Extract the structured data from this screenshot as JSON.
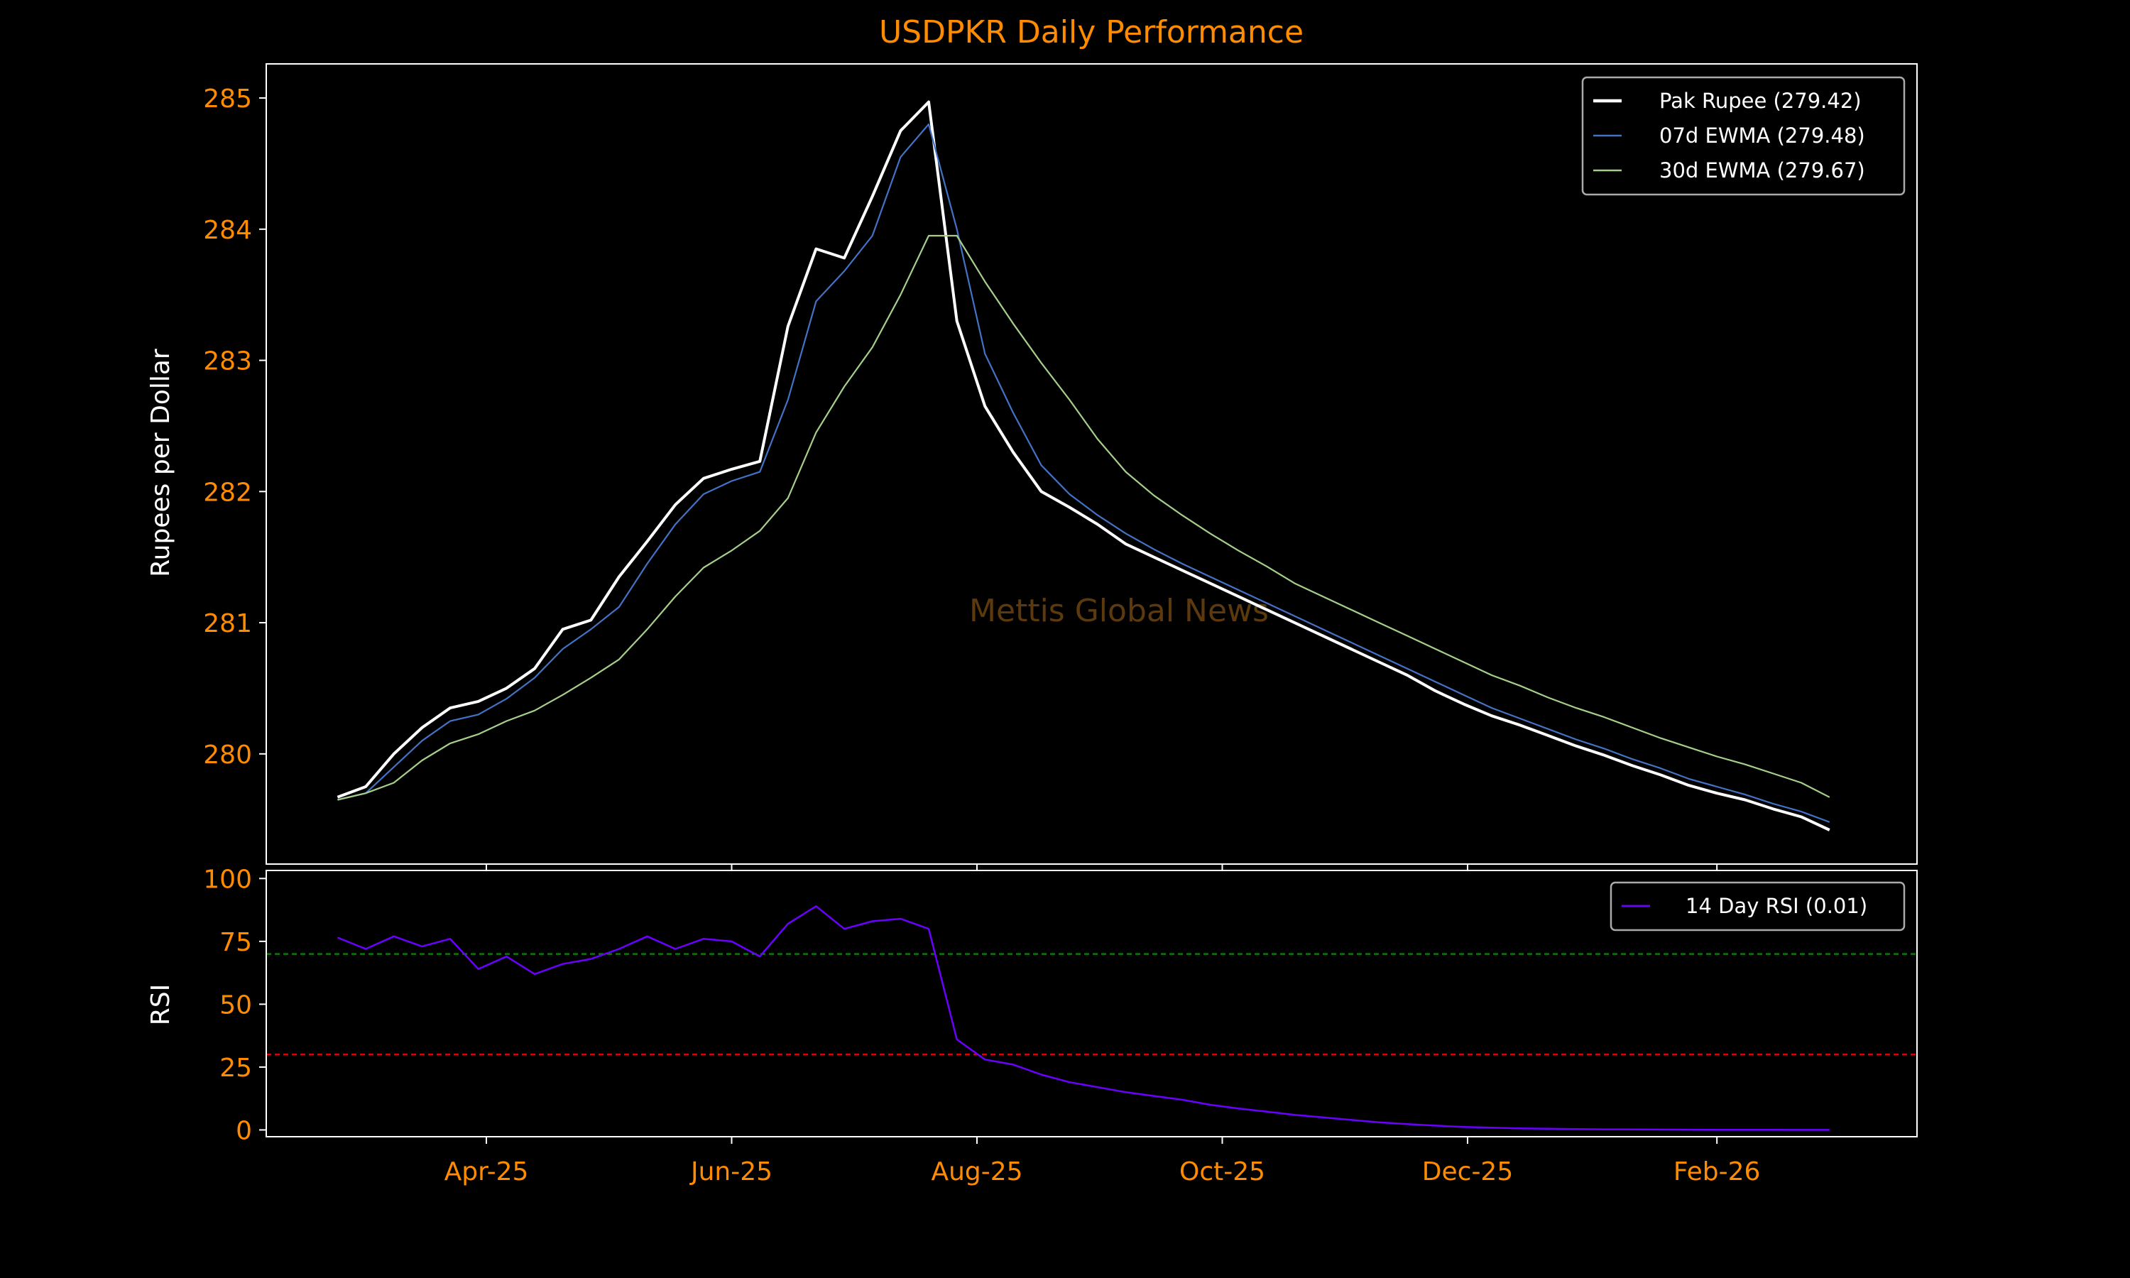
{
  "chart_data": [
    {
      "type": "line",
      "title": "USDPKR Daily Performance",
      "ylabel": "Rupees per Dollar",
      "xlabel": "",
      "start_date": "2025-02-23",
      "interval_days": 7,
      "xlim": [
        "2025-02-05",
        "2026-03-23"
      ],
      "ylim": [
        279.16,
        285.26
      ],
      "yticks": [
        280,
        281,
        282,
        283,
        284,
        285
      ],
      "xticks": [
        {
          "date": "2025-04-01",
          "label": "Apr-25"
        },
        {
          "date": "2025-06-01",
          "label": "Jun-25"
        },
        {
          "date": "2025-08-01",
          "label": "Aug-25"
        },
        {
          "date": "2025-10-01",
          "label": "Oct-25"
        },
        {
          "date": "2025-12-01",
          "label": "Dec-25"
        },
        {
          "date": "2026-02-01",
          "label": "Feb-26"
        }
      ],
      "legend_position": "top-right",
      "watermark": "Mettis Global News",
      "series": [
        {
          "name": "Pak Rupee (279.42)",
          "color": "#ffffff",
          "width": 4,
          "values": [
            279.67,
            279.75,
            280.0,
            280.2,
            280.35,
            280.4,
            280.5,
            280.65,
            280.95,
            281.02,
            281.35,
            281.62,
            281.9,
            282.1,
            282.17,
            282.23,
            283.26,
            283.85,
            283.78,
            284.25,
            284.75,
            284.97,
            283.3,
            282.65,
            282.3,
            282.0,
            281.88,
            281.75,
            281.6,
            281.5,
            281.4,
            281.3,
            281.2,
            281.1,
            281.0,
            280.9,
            280.8,
            280.7,
            280.6,
            280.48,
            280.38,
            280.29,
            280.22,
            280.14,
            280.06,
            279.99,
            279.91,
            279.84,
            279.76,
            279.7,
            279.65,
            279.58,
            279.52,
            279.42
          ]
        },
        {
          "name": "07d EWMA (279.48)",
          "color": "#4472c4",
          "width": 2.2,
          "values": [
            279.65,
            279.7,
            279.9,
            280.1,
            280.25,
            280.3,
            280.42,
            280.58,
            280.8,
            280.95,
            281.12,
            281.45,
            281.75,
            281.98,
            282.08,
            282.15,
            282.7,
            283.45,
            283.68,
            283.95,
            284.55,
            284.8,
            284.0,
            283.05,
            282.6,
            282.2,
            281.98,
            281.82,
            281.68,
            281.56,
            281.45,
            281.35,
            281.25,
            281.15,
            281.05,
            280.95,
            280.85,
            280.75,
            280.65,
            280.55,
            280.45,
            280.35,
            280.27,
            280.19,
            280.11,
            280.04,
            279.96,
            279.89,
            279.81,
            279.75,
            279.69,
            279.62,
            279.56,
            279.48
          ]
        },
        {
          "name": "30d EWMA (279.67)",
          "color": "#a6d08a",
          "width": 2.2,
          "values": [
            279.65,
            279.7,
            279.78,
            279.95,
            280.08,
            280.15,
            280.25,
            280.33,
            280.45,
            280.58,
            280.72,
            280.95,
            281.2,
            281.42,
            281.55,
            281.7,
            281.95,
            282.45,
            282.8,
            283.1,
            283.5,
            283.95,
            283.95,
            283.6,
            283.28,
            282.98,
            282.7,
            282.4,
            282.15,
            281.97,
            281.82,
            281.68,
            281.55,
            281.43,
            281.3,
            281.2,
            281.1,
            281.0,
            280.9,
            280.8,
            280.7,
            280.6,
            280.52,
            280.43,
            280.35,
            280.28,
            280.2,
            280.12,
            280.05,
            279.98,
            279.92,
            279.85,
            279.78,
            279.67
          ]
        }
      ]
    },
    {
      "type": "line",
      "ylabel": "RSI",
      "start_date": "2025-02-23",
      "interval_days": 7,
      "ylim": [
        -2.7,
        103.2
      ],
      "yticks": [
        0,
        25,
        50,
        75,
        100
      ],
      "legend_position": "top-right",
      "reference_lines": [
        {
          "value": 70,
          "color": "#008000"
        },
        {
          "value": 30,
          "color": "#e00000"
        }
      ],
      "series": [
        {
          "name": "14 Day RSI (0.01)",
          "color": "#6a00ff",
          "width": 2.5,
          "values": [
            76.5,
            72,
            77,
            73,
            76,
            64,
            69,
            62,
            66,
            68,
            72,
            77,
            72,
            76,
            75,
            69,
            82,
            89,
            80,
            83,
            84,
            80,
            36,
            28,
            26,
            22,
            19,
            17,
            15,
            13.5,
            12,
            10,
            8.5,
            7.3,
            6,
            5,
            4,
            3,
            2.3,
            1.7,
            1.2,
            0.9,
            0.6,
            0.45,
            0.35,
            0.25,
            0.2,
            0.15,
            0.1,
            0.08,
            0.05,
            0.03,
            0.02,
            0.01
          ]
        }
      ]
    }
  ]
}
